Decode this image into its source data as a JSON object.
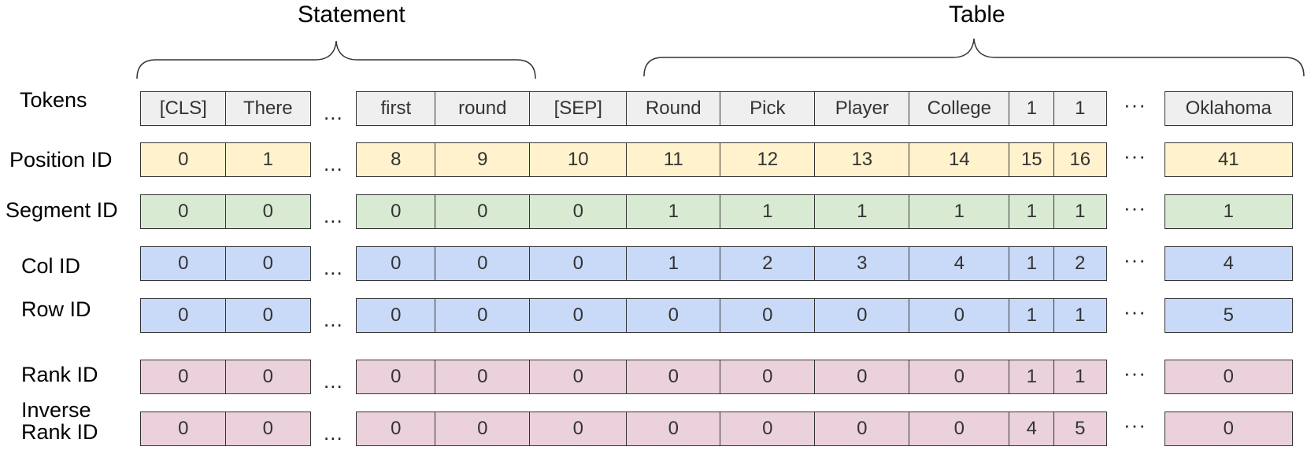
{
  "groups": {
    "statement": "Statement",
    "table": "Table"
  },
  "ellipsis": "...",
  "ellipsis_alt": "···",
  "colors": {
    "tokens": "#efefef",
    "position": "#fff2cc",
    "segment": "#d9ead3",
    "col": "#c9daf8",
    "row": "#c9daf8",
    "rank": "#ead1dc",
    "inverse_rank": "#ead1dc",
    "border": "#333333"
  },
  "rows": [
    {
      "key": "tokens",
      "label": "Tokens",
      "cells": [
        "[CLS]",
        "There",
        "first",
        "round",
        "[SEP]",
        "Round",
        "Pick",
        "Player",
        "College",
        "1",
        "1",
        "Oklahoma"
      ]
    },
    {
      "key": "position",
      "label": "Position ID",
      "cells": [
        "0",
        "1",
        "8",
        "9",
        "10",
        "11",
        "12",
        "13",
        "14",
        "15",
        "16",
        "41"
      ]
    },
    {
      "key": "segment",
      "label": "Segment ID",
      "cells": [
        "0",
        "0",
        "0",
        "0",
        "0",
        "1",
        "1",
        "1",
        "1",
        "1",
        "1",
        "1"
      ]
    },
    {
      "key": "col",
      "label": "Col ID",
      "cells": [
        "0",
        "0",
        "0",
        "0",
        "0",
        "1",
        "2",
        "3",
        "4",
        "1",
        "2",
        "4"
      ]
    },
    {
      "key": "row",
      "label": "Row ID",
      "cells": [
        "0",
        "0",
        "0",
        "0",
        "0",
        "0",
        "0",
        "0",
        "0",
        "1",
        "1",
        "5"
      ]
    },
    {
      "key": "rank",
      "label": "Rank ID",
      "cells": [
        "0",
        "0",
        "0",
        "0",
        "0",
        "0",
        "0",
        "0",
        "0",
        "1",
        "1",
        "0"
      ]
    },
    {
      "key": "inverse_rank",
      "label": "Inverse\nRank ID",
      "cells": [
        "0",
        "0",
        "0",
        "0",
        "0",
        "0",
        "0",
        "0",
        "0",
        "4",
        "5",
        "0"
      ]
    }
  ]
}
